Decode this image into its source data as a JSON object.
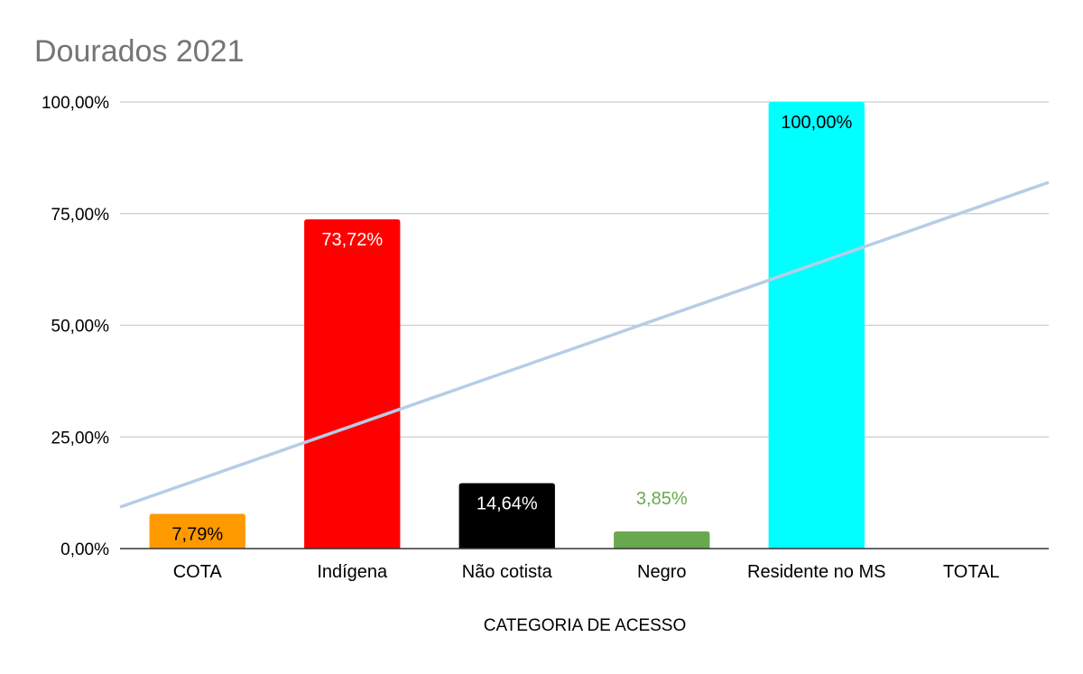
{
  "chart_data": {
    "type": "bar",
    "title": "Dourados 2021",
    "xlabel": "CATEGORIA DE ACESSO",
    "ylabel": "",
    "ylim": [
      0,
      100
    ],
    "yticks": [
      0,
      25,
      50,
      75,
      100
    ],
    "ytick_labels": [
      "0,00%",
      "25,00%",
      "50,00%",
      "75,00%",
      "100,00%"
    ],
    "categories": [
      "COTA",
      "Indígena",
      "Não cotista",
      "Negro",
      "Residente no MS",
      "TOTAL"
    ],
    "values": [
      7.79,
      73.72,
      14.64,
      3.85,
      100.0,
      null
    ],
    "value_labels": [
      "7,79%",
      "73,72%",
      "14,64%",
      "3,85%",
      "100,00%",
      ""
    ],
    "bar_colors": [
      "#ff9900",
      "#ff0000",
      "#000000",
      "#6aa84f",
      "#00ffff",
      ""
    ],
    "label_colors": [
      "#000000",
      "#ffffff",
      "#ffffff",
      "#6aa84f",
      "#000000",
      ""
    ],
    "label_positions": [
      "inside",
      "inside",
      "inside",
      "above",
      "inside",
      ""
    ],
    "trendline": {
      "type": "linear",
      "color": "#b7cde6",
      "start_value": 9.3,
      "end_value": 82
    },
    "grid": true,
    "legend": "none"
  }
}
